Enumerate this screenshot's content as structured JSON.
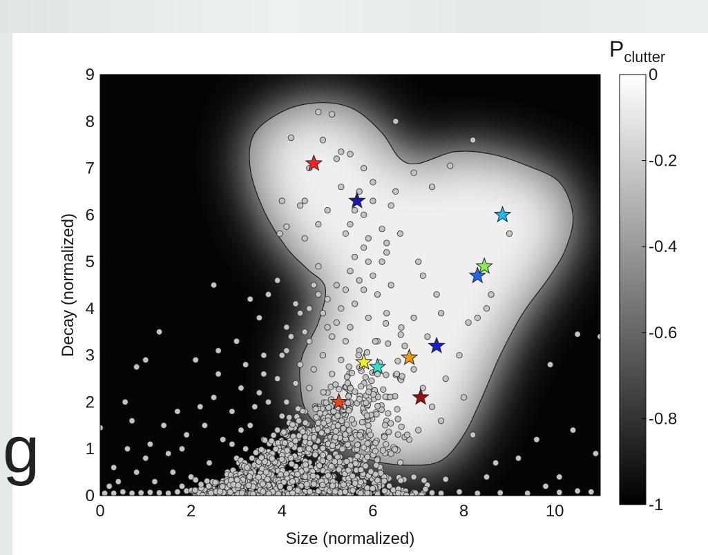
{
  "stray_text": "g",
  "chart_data": {
    "type": "scatter",
    "title": "",
    "xlabel": "Size (normalized)",
    "ylabel": "Decay (normalized)",
    "xlim": [
      0,
      11
    ],
    "ylim": [
      0,
      9
    ],
    "xticks": [
      0,
      2,
      4,
      6,
      8,
      10
    ],
    "yticks": [
      0,
      1,
      2,
      3,
      4,
      5,
      6,
      7,
      8,
      9
    ],
    "colorbar": {
      "label_main": "P",
      "label_sub": "clutter",
      "range": [
        -1,
        0
      ],
      "ticks": [
        "0",
        "-0.2",
        "-0.4",
        "-0.6",
        "-0.8",
        "-1"
      ],
      "colormap": "gray"
    },
    "point_color": "#c4c4c4",
    "highlighted_points": [
      {
        "x": 4.7,
        "y": 7.1,
        "color": "#ff2020"
      },
      {
        "x": 5.65,
        "y": 6.3,
        "color": "#1a1aa8"
      },
      {
        "x": 8.85,
        "y": 6.0,
        "color": "#22b8ee"
      },
      {
        "x": 8.45,
        "y": 4.9,
        "color": "#88ee55"
      },
      {
        "x": 8.3,
        "y": 4.7,
        "color": "#2266ee"
      },
      {
        "x": 7.4,
        "y": 3.2,
        "color": "#1a22cc"
      },
      {
        "x": 6.8,
        "y": 2.95,
        "color": "#ee9911"
      },
      {
        "x": 5.8,
        "y": 2.85,
        "color": "#eeee33"
      },
      {
        "x": 6.1,
        "y": 2.75,
        "color": "#33ddcc"
      },
      {
        "x": 7.05,
        "y": 2.1,
        "color": "#991111"
      },
      {
        "x": 5.25,
        "y": 2.0,
        "color": "#ee4411"
      }
    ],
    "clutter_points": [
      [
        0.1,
        0.05
      ],
      [
        0.3,
        0.05
      ],
      [
        0.5,
        0.08
      ],
      [
        0.7,
        0.05
      ],
      [
        0.9,
        0.06
      ],
      [
        1.1,
        0.07
      ],
      [
        1.3,
        0.06
      ],
      [
        1.5,
        0.05
      ],
      [
        1.7,
        0.08
      ],
      [
        1.9,
        0.1
      ],
      [
        2.1,
        0.12
      ],
      [
        2.3,
        0.1
      ],
      [
        2.5,
        0.08
      ],
      [
        2.7,
        0.05
      ],
      [
        2.9,
        0.06
      ],
      [
        3.1,
        0.1
      ],
      [
        3.3,
        0.05
      ],
      [
        3.5,
        0.07
      ],
      [
        3.7,
        0.05
      ],
      [
        3.9,
        0.08
      ],
      [
        4.1,
        0.06
      ],
      [
        4.3,
        0.05
      ],
      [
        4.5,
        0.08
      ],
      [
        4.7,
        0.06
      ],
      [
        4.9,
        0.05
      ],
      [
        5.1,
        0.07
      ],
      [
        5.3,
        0.05
      ],
      [
        5.5,
        0.08
      ],
      [
        5.7,
        0.06
      ],
      [
        5.9,
        0.05
      ],
      [
        6.1,
        0.07
      ],
      [
        6.3,
        0.05
      ],
      [
        6.5,
        0.06
      ],
      [
        6.7,
        0.05
      ],
      [
        6.9,
        0.07
      ],
      [
        7.1,
        0.05
      ],
      [
        7.3,
        0.06
      ],
      [
        7.5,
        0.05
      ],
      [
        7.9,
        0.08
      ],
      [
        8.3,
        0.05
      ],
      [
        8.8,
        0.06
      ],
      [
        9.4,
        0.05
      ],
      [
        10.1,
        0.07
      ],
      [
        10.5,
        0.1
      ],
      [
        10.8,
        0.08
      ],
      [
        0.0,
        1.45
      ],
      [
        0.8,
        2.75
      ],
      [
        1.3,
        3.5
      ],
      [
        1.0,
        2.9
      ],
      [
        0.55,
        2.0
      ],
      [
        0.3,
        0.6
      ],
      [
        0.8,
        0.5
      ],
      [
        0.6,
        1.0
      ],
      [
        1.5,
        0.9
      ],
      [
        1.2,
        0.3
      ],
      [
        1.0,
        0.8
      ],
      [
        1.6,
        0.5
      ],
      [
        1.9,
        1.3
      ],
      [
        2.0,
        0.4
      ],
      [
        2.2,
        1.9
      ],
      [
        2.1,
        2.9
      ],
      [
        2.6,
        2.6
      ],
      [
        1.8,
        1.0
      ],
      [
        2.4,
        0.7
      ],
      [
        2.7,
        1.2
      ],
      [
        2.9,
        1.8
      ],
      [
        3.1,
        2.3
      ],
      [
        3.0,
        0.8
      ],
      [
        3.3,
        1.5
      ],
      [
        3.5,
        2.2
      ],
      [
        3.6,
        3.0
      ],
      [
        3.5,
        3.8
      ],
      [
        3.7,
        4.3
      ],
      [
        3.9,
        4.6
      ],
      [
        4.1,
        3.6
      ],
      [
        4.3,
        4.1
      ],
      [
        4.4,
        2.8
      ],
      [
        4.6,
        3.3
      ],
      [
        4.7,
        4.5
      ],
      [
        4.8,
        4.9
      ],
      [
        4.9,
        3.9
      ],
      [
        5.0,
        4.2
      ],
      [
        5.1,
        2.6
      ],
      [
        5.2,
        3.7
      ],
      [
        5.3,
        4.0
      ],
      [
        5.4,
        4.4
      ],
      [
        5.5,
        4.8
      ],
      [
        5.6,
        5.1
      ],
      [
        5.7,
        4.6
      ],
      [
        5.8,
        5.3
      ],
      [
        5.9,
        5.0
      ],
      [
        6.0,
        4.7
      ],
      [
        6.1,
        4.3
      ],
      [
        6.2,
        5.0
      ],
      [
        6.3,
        5.4
      ],
      [
        6.4,
        4.5
      ],
      [
        5.5,
        5.8
      ],
      [
        5.6,
        6.1
      ],
      [
        5.7,
        6.5
      ],
      [
        5.8,
        6.0
      ],
      [
        5.9,
        5.5
      ],
      [
        6.0,
        6.3
      ],
      [
        6.2,
        5.7
      ],
      [
        6.4,
        6.2
      ],
      [
        6.5,
        6.5
      ],
      [
        6.6,
        5.6
      ],
      [
        6.3,
        5.2
      ],
      [
        5.4,
        5.6
      ],
      [
        5.3,
        6.6
      ],
      [
        4.5,
        6.3
      ],
      [
        4.4,
        6.2
      ],
      [
        4.6,
        7.0
      ],
      [
        4.9,
        7.6
      ],
      [
        5.2,
        7.2
      ],
      [
        5.5,
        7.3
      ],
      [
        5.8,
        7.0
      ],
      [
        6.0,
        6.7
      ],
      [
        5.1,
        8.15
      ],
      [
        5.0,
        6.1
      ],
      [
        4.8,
        5.8
      ],
      [
        4.5,
        5.5
      ],
      [
        4.1,
        5.75
      ],
      [
        4.0,
        6.3
      ],
      [
        3.95,
        5.6
      ],
      [
        4.2,
        7.65
      ],
      [
        4.8,
        8.2
      ],
      [
        5.3,
        7.35
      ],
      [
        6.9,
        6.9
      ],
      [
        7.0,
        5.0
      ],
      [
        7.1,
        4.7
      ],
      [
        6.5,
        8.0
      ],
      [
        7.3,
        6.6
      ],
      [
        7.7,
        7.05
      ],
      [
        8.2,
        7.6
      ],
      [
        9.0,
        5.6
      ],
      [
        8.6,
        4.3
      ],
      [
        8.5,
        4.0
      ],
      [
        8.3,
        3.8
      ],
      [
        8.1,
        3.7
      ],
      [
        7.5,
        3.9
      ],
      [
        7.4,
        4.3
      ],
      [
        6.9,
        3.8
      ],
      [
        7.2,
        3.4
      ],
      [
        6.7,
        3.2
      ],
      [
        6.6,
        2.5
      ],
      [
        6.9,
        2.7
      ],
      [
        7.1,
        2.3
      ],
      [
        7.3,
        1.9
      ],
      [
        7.5,
        1.6
      ],
      [
        7.0,
        1.4
      ],
      [
        6.8,
        1.2
      ],
      [
        6.3,
        1.6
      ],
      [
        6.5,
        1.0
      ],
      [
        6.0,
        1.1
      ],
      [
        5.7,
        0.8
      ],
      [
        5.5,
        1.3
      ],
      [
        5.3,
        0.6
      ],
      [
        5.1,
        1.0
      ],
      [
        4.9,
        1.4
      ],
      [
        4.7,
        0.9
      ],
      [
        4.5,
        1.8
      ],
      [
        4.3,
        0.5
      ],
      [
        4.2,
        1.2
      ],
      [
        4.0,
        1.7
      ],
      [
        3.8,
        0.9
      ],
      [
        3.6,
        1.2
      ],
      [
        3.4,
        0.6
      ],
      [
        3.2,
        1.0
      ],
      [
        3.0,
        0.3
      ],
      [
        2.8,
        0.5
      ],
      [
        7.6,
        2.5
      ],
      [
        7.9,
        3.0
      ],
      [
        8.0,
        2.1
      ],
      [
        8.2,
        1.3
      ],
      [
        8.7,
        0.7
      ],
      [
        8.5,
        0.4
      ],
      [
        9.2,
        0.8
      ],
      [
        9.6,
        1.2
      ],
      [
        9.9,
        2.8
      ],
      [
        10.5,
        3.45
      ],
      [
        10.1,
        0.4
      ],
      [
        10.9,
        0.9
      ],
      [
        11.0,
        3.4
      ],
      [
        10.4,
        1.4
      ],
      [
        9.8,
        0.2
      ],
      [
        2.5,
        4.5
      ],
      [
        3.3,
        4.2
      ],
      [
        3.0,
        3.3
      ],
      [
        2.6,
        3.1
      ],
      [
        3.2,
        2.8
      ],
      [
        2.3,
        1.5
      ],
      [
        2.5,
        2.1
      ],
      [
        1.7,
        1.8
      ],
      [
        1.4,
        1.5
      ],
      [
        1.1,
        1.1
      ],
      [
        0.7,
        1.6
      ],
      [
        0.4,
        0.3
      ],
      [
        0.2,
        0.2
      ],
      [
        1.8,
        0.2
      ],
      [
        2.7,
        0.25
      ],
      [
        3.5,
        0.4
      ],
      [
        4.4,
        0.3
      ],
      [
        5.2,
        0.2
      ],
      [
        6.2,
        0.3
      ],
      [
        6.9,
        0.4
      ],
      [
        7.6,
        0.35
      ],
      [
        3.9,
        2.5
      ],
      [
        4.1,
        3.1
      ],
      [
        4.3,
        2.4
      ],
      [
        4.5,
        3.5
      ],
      [
        4.7,
        2.7
      ],
      [
        4.9,
        3.0
      ],
      [
        5.1,
        3.4
      ],
      [
        5.3,
        2.9
      ],
      [
        5.5,
        3.6
      ],
      [
        5.7,
        3.1
      ],
      [
        5.9,
        3.8
      ],
      [
        6.1,
        3.3
      ],
      [
        6.3,
        3.9
      ],
      [
        5.0,
        2.2
      ],
      [
        3.4,
        1.9
      ],
      [
        3.7,
        2.0
      ],
      [
        3.9,
        1.4
      ],
      [
        4.1,
        2.0
      ],
      [
        4.3,
        1.5
      ],
      [
        4.6,
        2.3
      ],
      [
        4.8,
        1.9
      ],
      [
        3.1,
        1.4
      ],
      [
        2.9,
        1.1
      ],
      [
        3.6,
        2.6
      ],
      [
        4.0,
        3.0
      ],
      [
        4.2,
        3.4
      ],
      [
        4.4,
        3.9
      ],
      [
        4.6,
        4.0
      ],
      [
        4.8,
        4.3
      ],
      [
        5.0,
        3.6
      ],
      [
        5.2,
        4.5
      ],
      [
        5.4,
        3.3
      ],
      [
        5.6,
        4.1
      ],
      [
        5.8,
        4.4
      ]
    ]
  }
}
